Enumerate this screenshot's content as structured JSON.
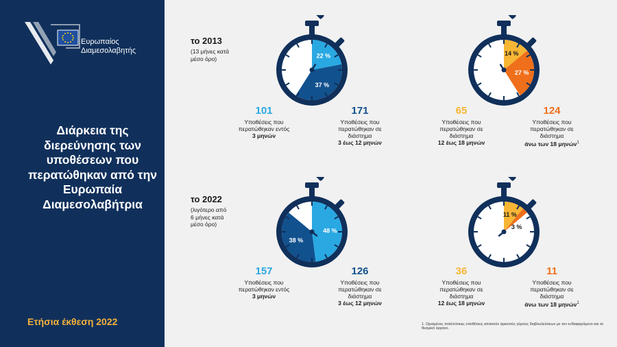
{
  "logo": {
    "line1": "Ευρωπαίος",
    "line2": "Διαμεσολαβητής"
  },
  "sidebar": {
    "title": "Διάρκεια της διερεύνησης των υποθέσεων που περατώθηκαν από την Ευρωπαία Διαμεσολαβήτρια",
    "footer": "Ετήσια έκθεση 2022"
  },
  "colors": {
    "navy": "#10305b",
    "dark_blue": "#11518e",
    "light_blue": "#29a8e2",
    "yellow": "#f7b634",
    "orange": "#ef6f1a"
  },
  "sections": [
    {
      "year": "το 2013",
      "note": [
        "(13 μήνες κατά",
        "μέσο όρο)"
      ],
      "watches": [
        {
          "slices": [
            {
              "label": "22 %",
              "percent": 22,
              "color": "#29a8e2"
            },
            {
              "label": "37 %",
              "percent": 37,
              "color": "#11518e"
            }
          ]
        },
        {
          "slices": [
            {
              "label": "14 %",
              "percent": 14,
              "color": "#f7b634"
            },
            {
              "label": "27 %",
              "percent": 27,
              "color": "#ef6f1a"
            }
          ]
        }
      ],
      "stats": [
        {
          "value": "101",
          "color": "#29a8e2",
          "desc": [
            "Υποθέσεις που",
            "περατώθηκαν εντός"
          ],
          "strong": "3 μηνών",
          "sup": ""
        },
        {
          "value": "171",
          "color": "#11518e",
          "desc": [
            "Υποθέσεις που",
            "περατώθηκαν σε",
            "διάστημα"
          ],
          "strong": "3 έως 12 μηνών",
          "sup": ""
        },
        {
          "value": "65",
          "color": "#f7b634",
          "desc": [
            "Υποθέσεις που",
            "περατώθηκαν σε",
            "διάστημα"
          ],
          "strong": "12 έως 18 μηνών",
          "sup": ""
        },
        {
          "value": "124",
          "color": "#ef6f1a",
          "desc": [
            "Υποθέσεις που",
            "περατώθηκαν σε",
            "διάστημα"
          ],
          "strong": "άνω των 18 μηνών",
          "sup": "1"
        }
      ]
    },
    {
      "year": "το 2022",
      "note": [
        "(λιγότερο από",
        "6 μήνες κατά",
        "μέσο όρο)"
      ],
      "watches": [
        {
          "slices": [
            {
              "label": "48 %",
              "percent": 48,
              "color": "#29a8e2"
            },
            {
              "label": "38 %",
              "percent": 38,
              "color": "#11518e"
            }
          ]
        },
        {
          "slices": [
            {
              "label": "11 %",
              "percent": 11,
              "color": "#f7b634"
            },
            {
              "label": "3 %",
              "percent": 3,
              "color": "#ef6f1a"
            }
          ]
        }
      ],
      "stats": [
        {
          "value": "157",
          "color": "#29a8e2",
          "desc": [
            "Υποθέσεις που",
            "περατώθηκαν εντός"
          ],
          "strong": "3 μηνών",
          "sup": ""
        },
        {
          "value": "126",
          "color": "#11518e",
          "desc": [
            "Υποθέσεις που",
            "περατώθηκαν σε",
            "διάστημα"
          ],
          "strong": "3 έως 12 μηνών",
          "sup": ""
        },
        {
          "value": "36",
          "color": "#f7b634",
          "desc": [
            "Υποθέσεις που",
            "περατώθηκαν σε",
            "διάστημα"
          ],
          "strong": "12 έως 18 μηνών",
          "sup": ""
        },
        {
          "value": "11",
          "color": "#ef6f1a",
          "desc": [
            "Υποθέσεις που",
            "περατώθηκαν σε",
            "διάστημα"
          ],
          "strong": "άνω των 18 μηνών",
          "sup": "1"
        }
      ]
    }
  ],
  "footnote": "1. Ορισμένες πολύπλοκες υποθέσεις απαιτούν αρκετούς γύρους διαβουλεύσεων με τον ενδιαφερόμενο και το θεσμικό όργανο."
}
